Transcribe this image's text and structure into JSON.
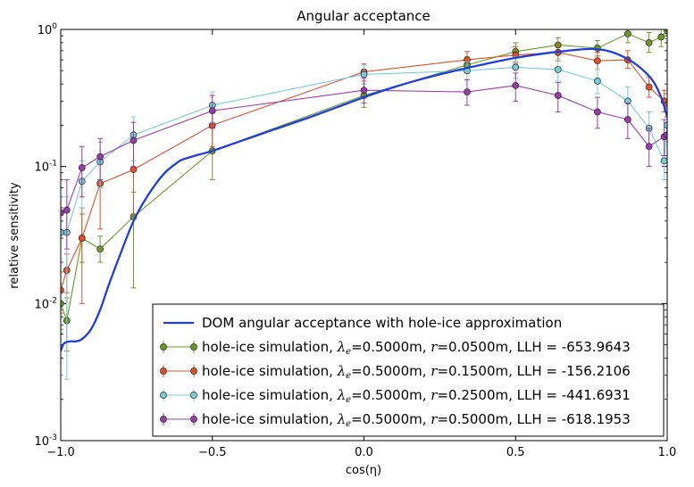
{
  "chart_data": {
    "type": "line",
    "title": "Angular acceptance",
    "xlabel": "cos(η)",
    "ylabel": "relative sensitivity",
    "xlim": [
      -1.0,
      1.0
    ],
    "ylim": [
      0.001,
      1.0
    ],
    "yscale": "log",
    "x_ticks": [
      {
        "v": -1.0,
        "label": "−1.0"
      },
      {
        "v": -0.5,
        "label": "−0.5"
      },
      {
        "v": 0.0,
        "label": "0.0"
      },
      {
        "v": 0.5,
        "label": "0.5"
      },
      {
        "v": 1.0,
        "label": "1.0"
      }
    ],
    "y_ticks": [
      {
        "v": 0.001,
        "base": "10",
        "exp": "-3"
      },
      {
        "v": 0.01,
        "base": "10",
        "exp": "-2"
      },
      {
        "v": 0.1,
        "base": "10",
        "exp": "-1"
      },
      {
        "v": 1.0,
        "base": "10",
        "exp": "0"
      }
    ],
    "legend_position": "lower-right",
    "curve": {
      "name": "DOM angular acceptance with hole-ice approximation",
      "color": "#1f3fd9",
      "x": [
        -1.0,
        -0.99,
        -0.97,
        -0.95,
        -0.93,
        -0.9,
        -0.87,
        -0.84,
        -0.8,
        -0.76,
        -0.72,
        -0.68,
        -0.65,
        -0.62,
        -0.6,
        -0.55,
        -0.5,
        -0.4,
        -0.3,
        -0.2,
        -0.1,
        0.0,
        0.1,
        0.2,
        0.3,
        0.4,
        0.5,
        0.6,
        0.7,
        0.75,
        0.8,
        0.85,
        0.9,
        0.95,
        0.98,
        1.0
      ],
      "y": [
        0.0045,
        0.0051,
        0.0053,
        0.0053,
        0.0055,
        0.0065,
        0.009,
        0.014,
        0.024,
        0.04,
        0.058,
        0.078,
        0.093,
        0.105,
        0.112,
        0.121,
        0.13,
        0.155,
        0.185,
        0.22,
        0.265,
        0.32,
        0.38,
        0.44,
        0.5,
        0.56,
        0.62,
        0.67,
        0.71,
        0.72,
        0.7,
        0.64,
        0.55,
        0.43,
        0.32,
        0.23
      ]
    },
    "series": [
      {
        "name": "hole-ice simulation, λe=0.5000m, r=0.0500m, LLH = -653.9643",
        "legend_prefix": "hole-ice simulation, ",
        "lambda": "0.5000m",
        "r": "0.0500m",
        "llh": "-653.9643",
        "color": "#4f7d14",
        "fill": "#6a9a2a",
        "x": [
          -1.0,
          -0.98,
          -0.93,
          -0.87,
          -0.76,
          -0.5,
          0.0,
          0.34,
          0.5,
          0.64,
          0.77,
          0.87,
          0.94,
          0.98,
          1.0
        ],
        "y": [
          0.01,
          0.0075,
          0.03,
          0.025,
          0.043,
          0.13,
          0.33,
          0.55,
          0.69,
          0.77,
          0.73,
          0.93,
          0.8,
          0.88,
          0.98
        ],
        "err_lo": [
          0.0065,
          0.0045,
          0.02,
          0.02,
          0.013,
          0.08,
          0.27,
          0.48,
          0.58,
          0.68,
          0.64,
          0.8,
          0.68,
          0.75,
          0.85
        ],
        "err_hi": [
          0.014,
          0.011,
          0.045,
          0.031,
          0.065,
          0.19,
          0.4,
          0.63,
          0.8,
          0.87,
          0.83,
          1.0,
          0.95,
          1.0,
          1.0
        ]
      },
      {
        "name": "hole-ice simulation, λe=0.5000m, r=0.1500m, LLH = -156.2106",
        "legend_prefix": "hole-ice simulation, ",
        "lambda": "0.5000m",
        "r": "0.1500m",
        "llh": "-156.2106",
        "color": "#c0391c",
        "fill": "#e2502a",
        "x": [
          -1.0,
          -0.98,
          -0.93,
          -0.87,
          -0.76,
          -0.5,
          0.0,
          0.34,
          0.5,
          0.64,
          0.77,
          0.87,
          0.94,
          0.99,
          1.0
        ],
        "y": [
          0.0125,
          0.0175,
          0.03,
          0.075,
          0.095,
          0.2,
          0.49,
          0.6,
          0.65,
          0.68,
          0.59,
          0.6,
          0.38,
          0.3,
          0.28
        ],
        "err_lo": [
          0.0085,
          0.012,
          0.01,
          0.035,
          0.045,
          0.14,
          0.42,
          0.52,
          0.56,
          0.59,
          0.51,
          0.52,
          0.32,
          0.25,
          0.23
        ],
        "err_hi": [
          0.017,
          0.023,
          0.05,
          0.11,
          0.15,
          0.27,
          0.56,
          0.69,
          0.75,
          0.78,
          0.68,
          0.7,
          0.45,
          0.36,
          0.34
        ]
      },
      {
        "name": "hole-ice simulation, λe=0.5000m, r=0.2500m, LLH = -441.6931",
        "legend_prefix": "hole-ice simulation, ",
        "lambda": "0.5000m",
        "r": "0.2500m",
        "llh": "-441.6931",
        "color": "#5cb8c8",
        "fill": "#78cdd8",
        "x": [
          -1.0,
          -0.98,
          -0.93,
          -0.87,
          -0.76,
          -0.5,
          0.0,
          0.34,
          0.5,
          0.64,
          0.77,
          0.87,
          0.94,
          0.99,
          1.0
        ],
        "y": [
          0.033,
          0.033,
          0.078,
          0.108,
          0.17,
          0.28,
          0.47,
          0.5,
          0.53,
          0.51,
          0.42,
          0.3,
          0.19,
          0.11,
          0.2
        ],
        "err_lo": [
          0.003,
          0.0028,
          0.05,
          0.07,
          0.11,
          0.21,
          0.4,
          0.43,
          0.44,
          0.42,
          0.34,
          0.23,
          0.14,
          0.08,
          0.15
        ],
        "err_hi": [
          0.06,
          0.06,
          0.11,
          0.15,
          0.23,
          0.35,
          0.55,
          0.58,
          0.63,
          0.61,
          0.51,
          0.38,
          0.25,
          0.16,
          0.27
        ]
      },
      {
        "name": "hole-ice simulation, λe=0.5000m, r=0.5000m, LLH = -618.1953",
        "legend_prefix": "hole-ice simulation, ",
        "lambda": "0.5000m",
        "r": "0.5000m",
        "llh": "-618.1953",
        "color": "#7a2c8c",
        "fill": "#9b3aad",
        "x": [
          -1.0,
          -0.98,
          -0.93,
          -0.87,
          -0.76,
          -0.5,
          0.0,
          0.34,
          0.5,
          0.64,
          0.77,
          0.87,
          0.94,
          0.99,
          1.0
        ],
        "y": [
          0.046,
          0.048,
          0.098,
          0.118,
          0.155,
          0.255,
          0.36,
          0.35,
          0.39,
          0.33,
          0.25,
          0.22,
          0.14,
          0.165,
          0.17
        ],
        "err_lo": [
          0.02,
          0.025,
          0.06,
          0.08,
          0.1,
          0.19,
          0.29,
          0.28,
          0.3,
          0.25,
          0.19,
          0.16,
          0.1,
          0.12,
          0.12
        ],
        "err_hi": [
          0.08,
          0.08,
          0.14,
          0.16,
          0.21,
          0.33,
          0.44,
          0.43,
          0.48,
          0.41,
          0.32,
          0.29,
          0.19,
          0.22,
          0.23
        ]
      }
    ]
  }
}
